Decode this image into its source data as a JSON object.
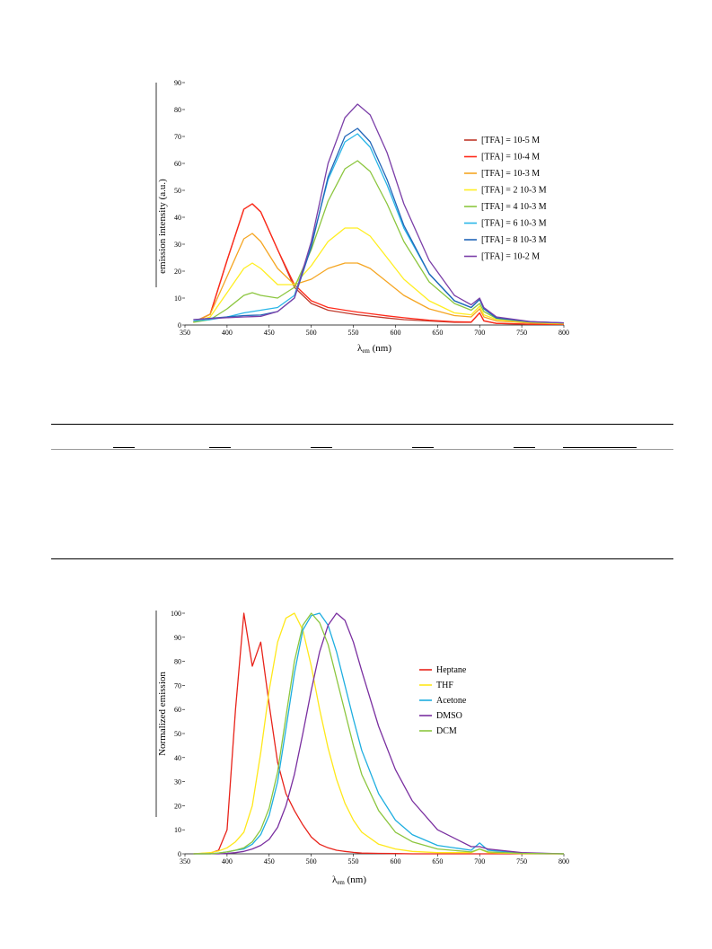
{
  "figure_top": {
    "ylabel": "emission intensity (a.u.)",
    "xlabel_main": "λ",
    "xlabel_sub": "em",
    "xlabel_unit": " (nm)"
  },
  "figure_bottom": {
    "ylabel": "Normalized emission",
    "xlabel_main": "λ",
    "xlabel_sub": "em",
    "xlabel_unit": " (nm)"
  },
  "chart_data": [
    {
      "type": "line",
      "title": "",
      "xlabel": "λem (nm)",
      "ylabel": "emission intensity (a.u.)",
      "xlim": [
        350,
        800
      ],
      "ylim": [
        0,
        90
      ],
      "xticks": [
        350,
        400,
        450,
        500,
        550,
        600,
        650,
        700,
        750,
        800
      ],
      "yticks": [
        0,
        10,
        20,
        30,
        40,
        50,
        60,
        70,
        80,
        90
      ],
      "grid": false,
      "legend_position": "right",
      "x": [
        360,
        380,
        400,
        420,
        430,
        440,
        460,
        480,
        500,
        520,
        540,
        555,
        570,
        590,
        610,
        640,
        670,
        690,
        700,
        705,
        720,
        760,
        800
      ],
      "series": [
        {
          "name": "[TFA] = 10-5 M",
          "color": "#c0392b",
          "values": [
            1,
            4,
            24,
            43,
            45,
            42,
            28,
            14,
            8,
            5.5,
            4.5,
            3.8,
            3.3,
            2.6,
            2.0,
            1.5,
            1.0,
            1.0,
            4.5,
            1.5,
            0.6,
            0.3,
            0.2
          ]
        },
        {
          "name": "[TFA] = 10-4 M",
          "color": "#ff2a1a",
          "values": [
            1,
            4,
            24,
            43,
            45,
            42,
            28,
            15,
            9,
            6.5,
            5.5,
            4.8,
            4.2,
            3.4,
            2.7,
            1.8,
            1.2,
            1.1,
            4.5,
            1.6,
            0.6,
            0.3,
            0.2
          ]
        },
        {
          "name": "[TFA] = 10-3 M",
          "color": "#f5a623",
          "values": [
            1,
            4,
            18,
            32,
            34,
            31,
            21,
            15,
            17,
            21,
            23,
            23,
            21,
            16,
            11,
            6,
            3.5,
            3,
            6,
            3,
            1.5,
            0.7,
            0.4
          ]
        },
        {
          "name": "[TFA] = 2 10-3 M",
          "color": "#ffee22",
          "values": [
            1,
            3,
            12,
            21,
            23,
            21,
            15,
            15,
            22,
            31,
            36,
            36,
            33,
            25,
            17,
            9,
            4.5,
            3.8,
            7,
            3.8,
            2,
            1,
            0.6
          ]
        },
        {
          "name": "[TFA] = 4 10-3 M",
          "color": "#8cc63f",
          "values": [
            1,
            2,
            6,
            11,
            12,
            11,
            10,
            14,
            28,
            46,
            58,
            61,
            57,
            45,
            31,
            16,
            8,
            5.5,
            8,
            5,
            2.4,
            1.1,
            0.7
          ]
        },
        {
          "name": "[TFA] = 6 10-3 M",
          "color": "#29b6e8",
          "values": [
            1.5,
            2,
            3,
            4.5,
            5,
            5.5,
            6.5,
            11,
            30,
            54,
            68,
            71,
            66,
            52,
            36,
            19,
            9,
            6.5,
            9.5,
            6,
            2.6,
            1.2,
            0.8
          ]
        },
        {
          "name": "[TFA] = 8 10-3 M",
          "color": "#2266b8",
          "values": [
            2,
            2.5,
            3,
            3.5,
            3.6,
            3.7,
            5,
            10,
            29,
            55,
            70,
            73,
            68,
            54,
            37,
            19,
            9,
            6.5,
            9.5,
            6,
            2.6,
            1.2,
            0.8
          ]
        },
        {
          "name": "[TFA] = 10-2 M",
          "color": "#7b3fa8",
          "values": [
            2,
            2.4,
            2.7,
            3,
            3.1,
            3.2,
            5,
            10,
            31,
            60,
            77,
            82,
            78,
            64,
            45,
            24,
            11,
            7.5,
            10,
            6.5,
            3,
            1.3,
            0.8
          ]
        }
      ]
    },
    {
      "type": "line",
      "title": "",
      "xlabel": "λem (nm)",
      "ylabel": "Normalized emission",
      "xlim": [
        350,
        800
      ],
      "ylim": [
        0,
        100
      ],
      "xticks": [
        350,
        400,
        450,
        500,
        550,
        600,
        650,
        700,
        750,
        800
      ],
      "yticks": [
        0,
        10,
        20,
        30,
        40,
        50,
        60,
        70,
        80,
        90,
        100
      ],
      "grid": false,
      "legend_position": "right",
      "x": [
        360,
        380,
        390,
        400,
        410,
        420,
        430,
        440,
        450,
        460,
        470,
        480,
        490,
        500,
        510,
        520,
        530,
        540,
        550,
        560,
        580,
        600,
        620,
        650,
        690,
        700,
        710,
        750,
        800
      ],
      "series": [
        {
          "name": "Heptane",
          "color": "#e8231a",
          "values": [
            0,
            0.3,
            1.5,
            10,
            60,
            100,
            78,
            88,
            62,
            38,
            25,
            18,
            12,
            7,
            4,
            2.5,
            1.5,
            1,
            0.6,
            0.3,
            0.2,
            0.1,
            0,
            0,
            0,
            0,
            0,
            0,
            0
          ]
        },
        {
          "name": "THF",
          "color": "#ffe81a",
          "values": [
            0,
            0.5,
            1.2,
            2.5,
            5,
            9,
            20,
            42,
            68,
            88,
            98,
            100,
            93,
            78,
            60,
            44,
            31,
            21,
            14,
            9,
            4,
            2,
            1,
            0.5,
            0.5,
            2,
            0.5,
            0.1,
            0
          ]
        },
        {
          "name": "Acetone",
          "color": "#1eaee0",
          "values": [
            0,
            0,
            0.3,
            0.8,
            1.5,
            2,
            4,
            8,
            16,
            30,
            52,
            75,
            93,
            99,
            100,
            95,
            84,
            70,
            56,
            43,
            25,
            14,
            8,
            3.5,
            1.5,
            4.5,
            1.5,
            0.3,
            0
          ]
        },
        {
          "name": "DMSO",
          "color": "#7a2fa0",
          "values": [
            0,
            0,
            0,
            0.2,
            0.5,
            1,
            2,
            3.5,
            6,
            11,
            20,
            33,
            50,
            68,
            84,
            95,
            100,
            97,
            88,
            76,
            53,
            35,
            22,
            10,
            3,
            3,
            2,
            0.5,
            0
          ]
        },
        {
          "name": "DCM",
          "color": "#8cc63f",
          "values": [
            0,
            0,
            0.3,
            0.8,
            1.5,
            2.5,
            5,
            10,
            19,
            34,
            57,
            80,
            95,
            100,
            96,
            87,
            73,
            59,
            45,
            33,
            18,
            9,
            5,
            2,
            0.8,
            2,
            0.8,
            0.2,
            0
          ]
        }
      ]
    }
  ]
}
